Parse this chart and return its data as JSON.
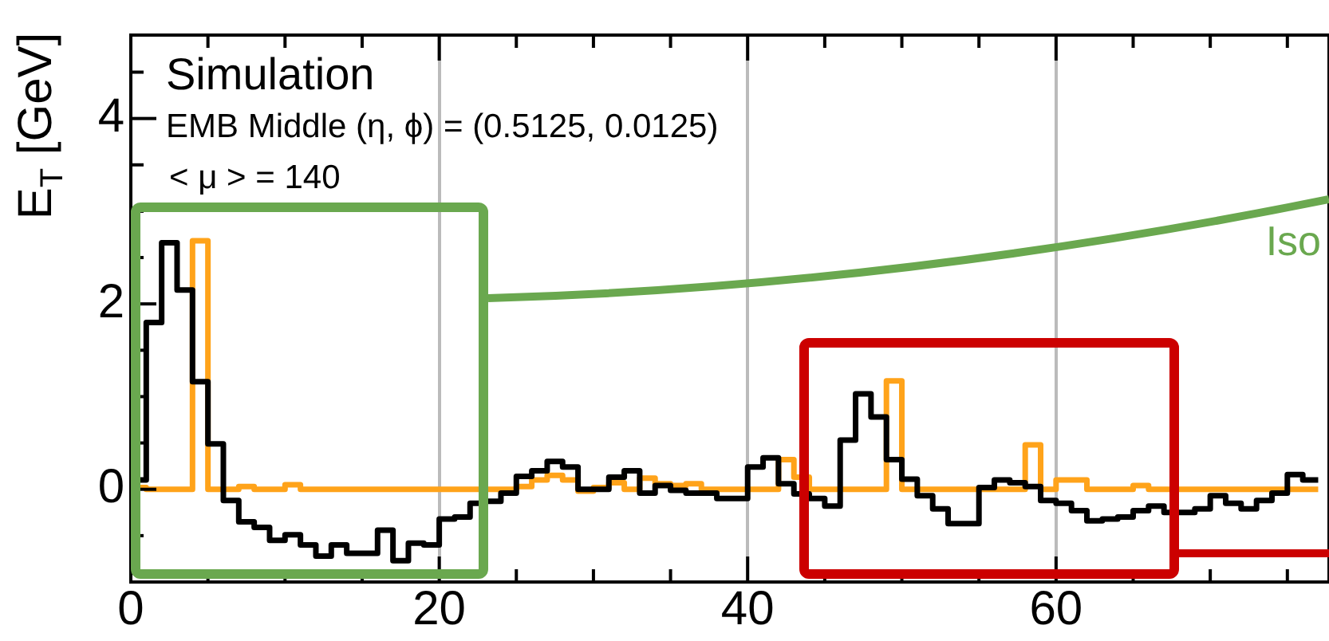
{
  "chart_data": {
    "type": "step",
    "ylabel": "E$_{T}$ [GeV]",
    "annotations": [
      "Simulation",
      "EMB Middle (η, ϕ) = (0.5125, 0.0125)",
      "< μ > = 140",
      "Iso"
    ],
    "x": [
      0,
      1,
      2,
      3,
      4,
      5,
      6,
      7,
      8,
      9,
      10,
      11,
      12,
      13,
      14,
      15,
      16,
      17,
      18,
      19,
      20,
      21,
      22,
      23,
      24,
      25,
      26,
      27,
      28,
      29,
      30,
      31,
      32,
      33,
      34,
      35,
      36,
      37,
      38,
      39,
      40,
      41,
      42,
      43,
      44,
      45,
      46,
      47,
      48,
      49,
      50,
      51,
      52,
      53,
      54,
      55,
      56,
      57,
      58,
      59,
      60,
      61,
      62,
      63,
      64,
      65,
      66,
      67,
      68,
      69,
      70,
      71,
      72,
      73,
      74,
      75,
      76,
      77
    ],
    "series": [
      {
        "color": "#000000",
        "values": [
          -0.08,
          0.1,
          1.8,
          2.66,
          2.15,
          1.16,
          0.49,
          -0.12,
          -0.35,
          -0.41,
          -0.55,
          -0.49,
          -0.6,
          -0.72,
          -0.6,
          -0.69,
          -0.69,
          -0.44,
          -0.77,
          -0.58,
          -0.6,
          -0.32,
          -0.3,
          -0.15,
          -0.13,
          -0.04,
          0.14,
          0.2,
          0.3,
          0.24,
          0.0,
          0.0,
          0.13,
          0.2,
          -0.04,
          0.04,
          -0.01,
          -0.04,
          -0.04,
          -0.1,
          -0.1,
          0.24,
          0.34,
          0.06,
          -0.05,
          -0.1,
          -0.18,
          0.53,
          1.03,
          0.78,
          0.32,
          0.11,
          -0.07,
          -0.21,
          -0.37,
          -0.37,
          0.02,
          0.1,
          0.07,
          0.03,
          -0.12,
          -0.15,
          -0.23,
          -0.34,
          -0.32,
          -0.3,
          -0.23,
          -0.18,
          -0.25,
          -0.25,
          -0.21,
          -0.07,
          -0.15,
          -0.21,
          -0.12,
          -0.04,
          0.16,
          0.1
        ]
      },
      {
        "color": "#ffa31a",
        "values": [
          0,
          0.02,
          0,
          0,
          0,
          2.68,
          0,
          0,
          0.03,
          0,
          0,
          0.05,
          0,
          0,
          0,
          0,
          0,
          0,
          0,
          0,
          0,
          0,
          0,
          0,
          0,
          0,
          0.03,
          0.1,
          0.15,
          0.1,
          -0.02,
          0.02,
          0.07,
          0,
          0.12,
          0.06,
          0.04,
          0.06,
          0,
          0,
          0,
          0,
          0,
          0.32,
          0.13,
          0,
          0,
          0,
          0,
          0,
          1.17,
          0,
          0,
          0,
          0,
          0,
          0,
          0,
          0,
          0.48,
          0,
          0.1,
          0.1,
          0,
          0,
          0,
          0.04,
          0,
          0,
          0,
          0,
          0,
          0,
          0,
          0,
          0,
          0,
          0
        ]
      }
    ],
    "xlim": [
      0,
      77.7
    ],
    "xticks": [
      0,
      {
        "value": 5,
        "label": null
      },
      {
        "value": 10,
        "label": null
      },
      {
        "value": 15,
        "label": null
      },
      20,
      {
        "value": 25,
        "label": null
      },
      {
        "value": 30,
        "label": null
      },
      {
        "value": 35,
        "label": null
      },
      40,
      {
        "value": 45,
        "label": null
      },
      {
        "value": 50,
        "label": null
      },
      {
        "value": 55,
        "label": null
      },
      60,
      {
        "value": 65,
        "label": null
      },
      {
        "value": 70,
        "label": null
      },
      {
        "value": 75,
        "label": null
      }
    ],
    "ylim": [
      -1,
      4.9
    ],
    "yticks": [
      {
        "value": -0.5,
        "label": null
      },
      0,
      {
        "value": 0.5,
        "label": null
      },
      {
        "value": 1,
        "label": null
      },
      {
        "value": 1.5,
        "label": null
      },
      2,
      {
        "value": 2.5,
        "label": null
      },
      {
        "value": 3,
        "label": null
      },
      {
        "value": 3.5,
        "label": null
      },
      4,
      {
        "value": 4.5,
        "label": null
      }
    ],
    "grid": "x",
    "legend": false,
    "line_style": "solid",
    "marker": "none"
  }
}
